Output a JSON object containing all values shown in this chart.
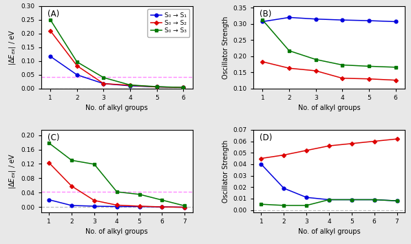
{
  "A": {
    "x": [
      1,
      2,
      3,
      4,
      5,
      6
    ],
    "blue": [
      0.117,
      0.05,
      0.018,
      0.01,
      0.006,
      0.004
    ],
    "red": [
      0.21,
      0.083,
      0.018,
      0.012,
      0.006,
      0.004
    ],
    "green": [
      0.25,
      0.097,
      0.04,
      0.013,
      0.007,
      0.004
    ],
    "ylim": [
      0.0,
      0.3
    ],
    "yticks": [
      0.0,
      0.05,
      0.1,
      0.15,
      0.2,
      0.25,
      0.3
    ],
    "hline": 0.043,
    "label": "(A)",
    "ylabel": "$|\\Delta E_{ex}|$ / eV"
  },
  "B": {
    "x": [
      1,
      2,
      3,
      4,
      5,
      6
    ],
    "blue": [
      0.307,
      0.32,
      0.315,
      0.312,
      0.31,
      0.307
    ],
    "red": [
      0.183,
      0.163,
      0.155,
      0.132,
      0.13,
      0.126
    ],
    "green": [
      0.312,
      0.217,
      0.19,
      0.173,
      0.169,
      0.166
    ],
    "ylim": [
      0.1,
      0.355
    ],
    "yticks": [
      0.1,
      0.15,
      0.2,
      0.25,
      0.3,
      0.35
    ],
    "label": "(B)",
    "ylabel": "Oscillator Strength"
  },
  "C": {
    "x": [
      1,
      2,
      3,
      4,
      5,
      6,
      7
    ],
    "blue": [
      0.02,
      0.004,
      0.002,
      0.001,
      0.001,
      0.0,
      -0.001
    ],
    "red": [
      0.123,
      0.058,
      0.018,
      0.005,
      0.002,
      0.0,
      -0.001
    ],
    "green": [
      0.178,
      0.13,
      0.119,
      0.042,
      0.035,
      0.019,
      0.003
    ],
    "ylim": [
      -0.015,
      0.215
    ],
    "yticks": [
      0.0,
      0.04,
      0.08,
      0.12,
      0.16,
      0.2
    ],
    "hline": 0.043,
    "label": "(C)",
    "ylabel": "$|\\Delta E_{ex}|$ / eV"
  },
  "D": {
    "x": [
      1,
      2,
      3,
      4,
      5,
      6,
      7
    ],
    "blue": [
      0.04,
      0.019,
      0.011,
      0.009,
      0.009,
      0.009,
      0.008
    ],
    "red": [
      0.045,
      0.048,
      0.052,
      0.056,
      0.058,
      0.06,
      0.062
    ],
    "green": [
      0.005,
      0.004,
      0.004,
      0.009,
      0.009,
      0.009,
      0.008
    ],
    "ylim": [
      -0.002,
      0.07
    ],
    "yticks": [
      0.0,
      0.01,
      0.02,
      0.03,
      0.04,
      0.05,
      0.06,
      0.07
    ],
    "label": "(D)",
    "ylabel": "Oscillator Strength"
  },
  "legend_labels": [
    "S₀ → S₁",
    "S₀ → S₂",
    "S₀ → S₃"
  ],
  "xlabel": "No. of alkyl groups",
  "blue_color": "#0000dd",
  "red_color": "#dd0000",
  "green_color": "#007700",
  "dashed_pink": "#ff88ff",
  "dashed_gray": "#bbbbbb",
  "fig_facecolor": "#e8e8e8"
}
